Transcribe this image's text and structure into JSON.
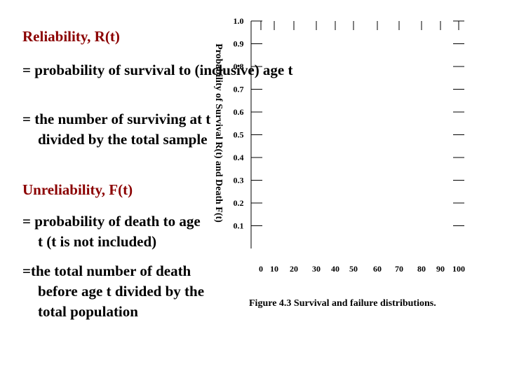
{
  "slide": {
    "reliability_heading": "Reliability, R(t)",
    "reliability_def1": "= probability of survival to (inclusive) age t",
    "reliability_def2": "= the number of surviving at t divided by the total sample",
    "unreliability_heading": "Unreliability, F(t)",
    "unreliability_def1": "= probability of  death to age t (t is not included)",
    "unreliability_def2": "=the total number of death before age t divided by the total population",
    "caption": "Figure 4.3 Survival  and failure distributions."
  },
  "chart_data": {
    "type": "line",
    "ylabel": "Probability of Survival R(t) and Death F(t)",
    "xlabel": "",
    "x_ticks": [
      0,
      10,
      20,
      30,
      40,
      50,
      60,
      70,
      80,
      90,
      100
    ],
    "y_ticks": [
      0.1,
      0.2,
      0.3,
      0.4,
      0.5,
      0.6,
      0.7,
      0.8,
      0.9,
      1.0
    ],
    "xlim": [
      0,
      100
    ],
    "ylim": [
      0.0,
      1.0
    ],
    "series": [],
    "grid": false,
    "colors": {
      "heading": "#8b0000",
      "text": "#000000",
      "axis": "#000000"
    }
  }
}
